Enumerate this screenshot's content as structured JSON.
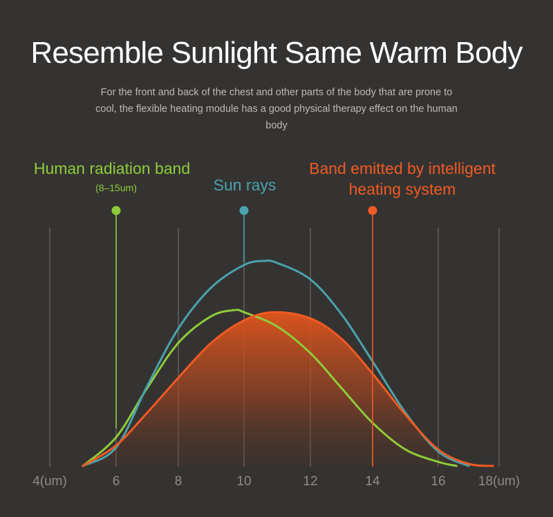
{
  "title": "Resemble Sunlight Same Warm Body",
  "subtitle": "For the front and back of the chest and other parts of the body that are prone to cool, the flexible heating module has a good physical therapy effect on the human body",
  "chart_data": {
    "type": "line",
    "xlabel": "",
    "ylabel": "",
    "x_ticks": [
      "4(um)",
      "6",
      "8",
      "10",
      "12",
      "14",
      "16",
      "18(um)"
    ],
    "x_tick_values": [
      4,
      6,
      8,
      10,
      12,
      14,
      16,
      18
    ],
    "xlim": [
      4,
      18
    ],
    "ylim": [
      0,
      1
    ],
    "grid": true,
    "series": [
      {
        "name": "Sun rays",
        "color": "#4aa3ad",
        "marker_x": 10,
        "x": [
          5,
          6,
          7,
          8,
          9,
          10,
          10.6,
          11,
          12,
          13,
          14,
          15,
          16,
          17
        ],
        "y": [
          0,
          0.09,
          0.39,
          0.67,
          0.87,
          0.98,
          1.0,
          0.99,
          0.91,
          0.74,
          0.51,
          0.26,
          0.07,
          0
        ]
      },
      {
        "name": "Human radiation band",
        "note": "(8–15um)",
        "color": "#8fcc3a",
        "marker_x": 6,
        "x": [
          5,
          6,
          7,
          8,
          9,
          9.7,
          10,
          11,
          12,
          13,
          14,
          15,
          16,
          16.6
        ],
        "y": [
          0,
          0.14,
          0.38,
          0.6,
          0.73,
          0.76,
          0.75,
          0.68,
          0.55,
          0.38,
          0.21,
          0.08,
          0.02,
          0
        ]
      },
      {
        "name": "Band emitted by intelligent heating system",
        "color": "#f05a23",
        "marker_x": 14,
        "x": [
          5,
          6,
          7,
          8,
          9,
          10,
          10.9,
          12,
          13,
          14,
          15,
          16,
          17,
          17.8
        ],
        "y": [
          0,
          0.1,
          0.26,
          0.43,
          0.6,
          0.71,
          0.75,
          0.72,
          0.62,
          0.45,
          0.25,
          0.08,
          0.01,
          0
        ],
        "filled": true
      }
    ],
    "annotations": [
      {
        "series": "Human radiation band",
        "lines": [
          "Human radiation band"
        ],
        "sub": "(8–15um)"
      },
      {
        "series": "Sun rays",
        "lines": [
          "Sun rays"
        ]
      },
      {
        "series": "Band emitted by intelligent heating system",
        "lines": [
          "Band emitted by intelligent",
          "heating system"
        ]
      }
    ]
  }
}
